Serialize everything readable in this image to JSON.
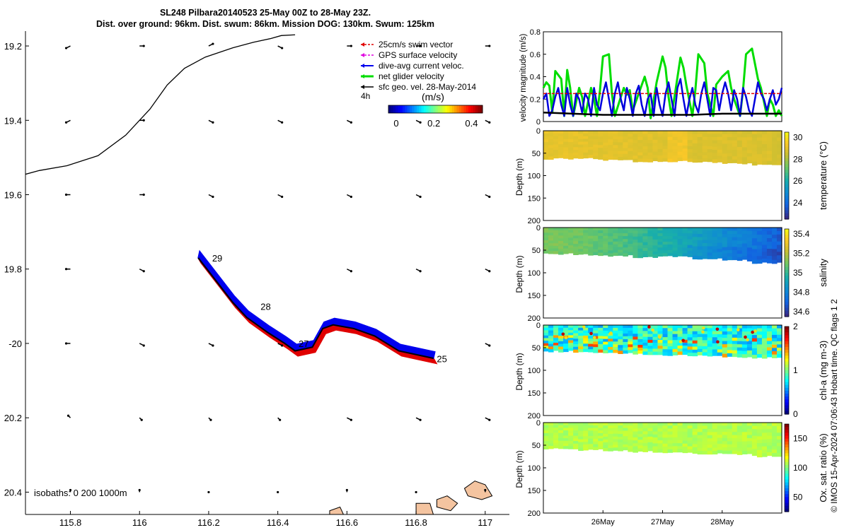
{
  "title": {
    "line1": "SL248 Pilbara20140523 25-May 00Z to 28-May 23Z.",
    "line2": "Dist. over ground: 96km. Dist. swum: 86km. Mission DOG: 130km. Swum: 125km"
  },
  "credit": "© IMOS 15-Apr-2024 07:06:43 Hobart time. QC flags 1  2",
  "colors": {
    "swim": "#e00000",
    "gps": "#e000e0",
    "dive": "#0000ee",
    "net": "#00dd00",
    "sfc": "#000000",
    "coast": "#f4c4a0"
  },
  "chart_data": [
    {
      "type": "map",
      "xlim": [
        115.67,
        117.07
      ],
      "ylim": [
        -20.46,
        -19.16
      ],
      "xticks": [
        115.8,
        116,
        116.2,
        116.4,
        116.6,
        116.8,
        117
      ],
      "xtick_labels": [
        "115.8",
        "116",
        "116.2",
        "116.4",
        "116.6",
        "116.8",
        "117"
      ],
      "yticks": [
        -19.2,
        -19.4,
        -19.6,
        -19.8,
        -20,
        -20.2,
        -20.4
      ],
      "ytick_labels": [
        "19.2",
        "19.4",
        "19.6",
        "19.8",
        "-20",
        "20.2",
        "20.4"
      ],
      "legend": {
        "position": "top-right",
        "entries": [
          "25cm/s swim vector",
          "GPS surface velocity",
          "dive-avg current veloc.",
          "net glider velocity",
          "sfc geo. vel. 28-May-2014"
        ],
        "scale_label": "4h"
      },
      "colorbar": {
        "label": "(m/s)",
        "ticks": [
          "0",
          "0.2",
          "0.4"
        ],
        "range": [
          0,
          0.5
        ]
      },
      "isobaths_label": "isobaths: 0   200  1000m",
      "isobath_line": [
        [
          115.67,
          -19.545
        ],
        [
          115.71,
          -19.535
        ],
        [
          115.79,
          -19.522
        ],
        [
          115.88,
          -19.495
        ],
        [
          115.96,
          -19.44
        ],
        [
          116.03,
          -19.37
        ],
        [
          116.08,
          -19.305
        ],
        [
          116.13,
          -19.26
        ],
        [
          116.19,
          -19.23
        ],
        [
          116.27,
          -19.205
        ],
        [
          116.33,
          -19.19
        ],
        [
          116.38,
          -19.18
        ],
        [
          116.41,
          -19.172
        ],
        [
          116.45,
          -19.17
        ]
      ],
      "track": [
        [
          116.17,
          -19.77
        ],
        [
          116.22,
          -19.83
        ],
        [
          116.27,
          -19.89
        ],
        [
          116.31,
          -19.93
        ],
        [
          116.37,
          -19.97
        ],
        [
          116.42,
          -20.0
        ],
        [
          116.45,
          -20.02
        ],
        [
          116.5,
          -20.01
        ],
        [
          116.53,
          -19.96
        ],
        [
          116.56,
          -19.95
        ],
        [
          116.62,
          -19.96
        ],
        [
          116.68,
          -19.98
        ],
        [
          116.75,
          -20.02
        ],
        [
          116.85,
          -20.04
        ]
      ],
      "day_labels": [
        {
          "text": "29",
          "lon": 116.21,
          "lat": -19.78
        },
        {
          "text": "28",
          "lon": 116.35,
          "lat": -19.91
        },
        {
          "text": "27",
          "lon": 116.46,
          "lat": -20.01
        },
        {
          "text": "25",
          "lon": 116.86,
          "lat": -20.05
        }
      ],
      "geo_vectors": [
        {
          "lon": 115.8,
          "lat": -19.2,
          "u": -0.02,
          "v": -0.01
        },
        {
          "lon": 116,
          "lat": -19.2,
          "u": 0.02,
          "v": 0
        },
        {
          "lon": 116.2,
          "lat": -19.2,
          "u": 0.02,
          "v": 0.01
        },
        {
          "lon": 116.4,
          "lat": -19.2,
          "u": 0.02,
          "v": -0.01
        },
        {
          "lon": 116.6,
          "lat": -19.2,
          "u": 0.02,
          "v": 0
        },
        {
          "lon": 116.8,
          "lat": -19.2,
          "u": 0.02,
          "v": 0
        },
        {
          "lon": 117,
          "lat": -19.2,
          "u": 0.02,
          "v": 0
        },
        {
          "lon": 115.8,
          "lat": -19.4,
          "u": -0.02,
          "v": -0.01
        },
        {
          "lon": 116,
          "lat": -19.4,
          "u": 0.02,
          "v": 0
        },
        {
          "lon": 116.2,
          "lat": -19.4,
          "u": 0.02,
          "v": -0.01
        },
        {
          "lon": 116.4,
          "lat": -19.4,
          "u": 0.02,
          "v": -0.01
        },
        {
          "lon": 116.6,
          "lat": -19.4,
          "u": 0.02,
          "v": -0.01
        },
        {
          "lon": 116.8,
          "lat": -19.4,
          "u": 0.02,
          "v": -0.01
        },
        {
          "lon": 117,
          "lat": -19.4,
          "u": 0.02,
          "v": -0.01
        },
        {
          "lon": 115.8,
          "lat": -19.6,
          "u": -0.02,
          "v": 0
        },
        {
          "lon": 116,
          "lat": -19.6,
          "u": 0.02,
          "v": 0
        },
        {
          "lon": 116.2,
          "lat": -19.6,
          "u": 0.02,
          "v": -0.01
        },
        {
          "lon": 116.4,
          "lat": -19.6,
          "u": 0.02,
          "v": -0.01
        },
        {
          "lon": 116.6,
          "lat": -19.6,
          "u": 0.02,
          "v": -0.01
        },
        {
          "lon": 116.8,
          "lat": -19.6,
          "u": 0.02,
          "v": -0.01
        },
        {
          "lon": 117,
          "lat": -19.6,
          "u": 0.02,
          "v": -0.01
        },
        {
          "lon": 115.8,
          "lat": -19.8,
          "u": -0.02,
          "v": 0
        },
        {
          "lon": 116,
          "lat": -19.8,
          "u": 0.02,
          "v": -0.01
        },
        {
          "lon": 116.6,
          "lat": -19.8,
          "u": 0.02,
          "v": -0.01
        },
        {
          "lon": 116.8,
          "lat": -19.8,
          "u": 0.02,
          "v": -0.01
        },
        {
          "lon": 117,
          "lat": -19.8,
          "u": 0.02,
          "v": -0.01
        },
        {
          "lon": 115.8,
          "lat": -20,
          "u": -0.02,
          "v": 0
        },
        {
          "lon": 116,
          "lat": -20,
          "u": 0.02,
          "v": -0.01
        },
        {
          "lon": 116.2,
          "lat": -20,
          "u": 0.02,
          "v": -0.01
        },
        {
          "lon": 116.4,
          "lat": -20,
          "u": 0.02,
          "v": -0.01
        },
        {
          "lon": 117,
          "lat": -20,
          "u": 0.02,
          "v": -0.01
        },
        {
          "lon": 115.8,
          "lat": -20.2,
          "u": -0.01,
          "v": 0.01
        },
        {
          "lon": 116,
          "lat": -20.2,
          "u": 0.01,
          "v": -0.01
        },
        {
          "lon": 116.2,
          "lat": -20.2,
          "u": 0.01,
          "v": -0.01
        },
        {
          "lon": 116.4,
          "lat": -20.2,
          "u": 0.01,
          "v": -0.01
        },
        {
          "lon": 116.6,
          "lat": -20.2,
          "u": 0.02,
          "v": -0.01
        },
        {
          "lon": 116.8,
          "lat": -20.2,
          "u": 0.02,
          "v": -0.01
        },
        {
          "lon": 117,
          "lat": -20.2,
          "u": 0.02,
          "v": -0.01
        },
        {
          "lon": 115.8,
          "lat": -20.4,
          "u": 0,
          "v": 0.01
        },
        {
          "lon": 116,
          "lat": -20.4,
          "u": 0,
          "v": 0.01
        },
        {
          "lon": 116.2,
          "lat": -20.4,
          "u": 0,
          "v": 0
        },
        {
          "lon": 116.4,
          "lat": -20.4,
          "u": 0,
          "v": 0
        },
        {
          "lon": 116.6,
          "lat": -20.4,
          "u": 0,
          "v": 0.01
        },
        {
          "lon": 116.8,
          "lat": -20.4,
          "u": 0,
          "v": 0
        },
        {
          "lon": 117,
          "lat": -20.4,
          "u": 0,
          "v": 0.01
        }
      ],
      "coast_islands": [
        [
          [
            116.94,
            -20.39
          ],
          [
            116.97,
            -20.37
          ],
          [
            117.0,
            -20.38
          ],
          [
            117.02,
            -20.41
          ],
          [
            116.99,
            -20.42
          ],
          [
            116.95,
            -20.41
          ]
        ],
        [
          [
            116.86,
            -20.42
          ],
          [
            116.89,
            -20.41
          ],
          [
            116.92,
            -20.43
          ],
          [
            116.9,
            -20.45
          ],
          [
            116.86,
            -20.44
          ]
        ],
        [
          [
            116.8,
            -20.43
          ],
          [
            116.84,
            -20.43
          ],
          [
            116.85,
            -20.46
          ],
          [
            116.8,
            -20.46
          ]
        ],
        [
          [
            116.55,
            -20.45
          ],
          [
            116.58,
            -20.44
          ],
          [
            116.59,
            -20.46
          ],
          [
            116.55,
            -20.46
          ]
        ]
      ]
    },
    {
      "type": "line",
      "ylabel": "velocity magnitude (m/s)",
      "xlim": [
        25.0,
        29.0
      ],
      "ylim": [
        0,
        0.8
      ],
      "yticks": [
        0,
        0.2,
        0.4,
        0.6,
        0.8
      ],
      "ytick_labels": [
        "0",
        "0.2",
        "0.4",
        "0.6",
        "0.8"
      ],
      "series": [
        {
          "name": "net glider velocity",
          "color": "#00dd00",
          "width": 3,
          "x": [
            25.0,
            25.05,
            25.1,
            25.15,
            25.2,
            25.3,
            25.35,
            25.4,
            25.45,
            25.5,
            25.6,
            25.65,
            25.7,
            25.8,
            25.85,
            25.9,
            25.95,
            26.0,
            26.1,
            26.15,
            26.2,
            26.3,
            26.35,
            26.4,
            26.45,
            26.5,
            26.6,
            26.7,
            26.75,
            26.8,
            26.9,
            27.0,
            27.05,
            27.1,
            27.15,
            27.2,
            27.3,
            27.35,
            27.4,
            27.5,
            27.55,
            27.6,
            27.7,
            27.75,
            27.8,
            27.85,
            27.9,
            28.0,
            28.1,
            28.15,
            28.2,
            28.3,
            28.35,
            28.4,
            28.5,
            28.6,
            28.65,
            28.7,
            28.75,
            28.8,
            28.85,
            28.9,
            28.95,
            29.0
          ],
          "values": [
            0.3,
            0.35,
            0.32,
            0.08,
            0.45,
            0.38,
            0.05,
            0.46,
            0.3,
            0.05,
            0.3,
            0.22,
            0.05,
            0.3,
            0.2,
            0.05,
            0.28,
            0.58,
            0.6,
            0.25,
            0.05,
            0.22,
            0.3,
            0.24,
            0.28,
            0.1,
            0.25,
            0.4,
            0.3,
            0.03,
            0.35,
            0.58,
            0.48,
            0.22,
            0.05,
            0.22,
            0.57,
            0.48,
            0.32,
            0.05,
            0.28,
            0.6,
            0.52,
            0.25,
            0.15,
            0.05,
            0.33,
            0.4,
            0.45,
            0.3,
            0.2,
            0.05,
            0.28,
            0.6,
            0.65,
            0.38,
            0.3,
            0.18,
            0.05,
            0.2,
            0.15,
            0.05,
            0.1,
            0.05
          ]
        },
        {
          "name": "dive-avg current veloc.",
          "color": "#0000dd",
          "width": 2.5,
          "x": [
            25.0,
            25.05,
            25.1,
            25.15,
            25.2,
            25.25,
            25.3,
            25.35,
            25.4,
            25.45,
            25.5,
            25.55,
            25.6,
            25.65,
            25.7,
            25.75,
            25.8,
            25.85,
            25.9,
            25.95,
            26.0,
            26.05,
            26.1,
            26.15,
            26.2,
            26.25,
            26.3,
            26.35,
            26.4,
            26.45,
            26.5,
            26.55,
            26.6,
            26.65,
            26.7,
            26.75,
            26.8,
            26.85,
            26.9,
            26.95,
            27.0,
            27.05,
            27.1,
            27.15,
            27.2,
            27.25,
            27.3,
            27.35,
            27.4,
            27.45,
            27.5,
            27.55,
            27.6,
            27.65,
            27.7,
            27.75,
            27.8,
            27.85,
            27.9,
            27.95,
            28.0,
            28.05,
            28.1,
            28.15,
            28.2,
            28.25,
            28.3,
            28.35,
            28.4,
            28.45,
            28.5,
            28.55,
            28.6,
            28.65,
            28.7,
            28.75,
            28.8,
            28.85,
            28.9,
            28.95,
            29.0
          ],
          "values": [
            0.2,
            0.25,
            0.05,
            0.1,
            0.22,
            0.3,
            0.15,
            0.05,
            0.3,
            0.15,
            0.05,
            0.25,
            0.2,
            0.08,
            0.25,
            0.2,
            0.05,
            0.3,
            0.15,
            0.1,
            0.25,
            0.35,
            0.2,
            0.05,
            0.25,
            0.35,
            0.2,
            0.1,
            0.3,
            0.2,
            0.05,
            0.25,
            0.32,
            0.15,
            0.05,
            0.2,
            0.25,
            0.05,
            0.3,
            0.15,
            0.05,
            0.25,
            0.35,
            0.2,
            0.05,
            0.3,
            0.38,
            0.2,
            0.05,
            0.2,
            0.3,
            0.15,
            0.08,
            0.25,
            0.35,
            0.2,
            0.05,
            0.3,
            0.28,
            0.1,
            0.25,
            0.35,
            0.25,
            0.1,
            0.28,
            0.2,
            0.05,
            0.3,
            0.22,
            0.1,
            0.05,
            0.2,
            0.35,
            0.25,
            0.2,
            0.1,
            0.2,
            0.28,
            0.15,
            0.2,
            0.3
          ]
        },
        {
          "name": "swim vector",
          "color": "#e00000",
          "width": 1.5,
          "dashed": true,
          "x": [
            25.0,
            29.0
          ],
          "values": [
            0.25,
            0.25
          ]
        },
        {
          "name": "sfc geo. vel.",
          "color": "#000000",
          "width": 2.5,
          "x": [
            25.0,
            25.5,
            26.0,
            26.5,
            27.0,
            27.5,
            28.0,
            28.5,
            29.0
          ],
          "values": [
            0.08,
            0.07,
            0.06,
            0.06,
            0.06,
            0.06,
            0.07,
            0.07,
            0.07
          ]
        }
      ]
    },
    {
      "type": "heatmap",
      "name": "temperature",
      "ylabel": "Depth (m)",
      "yticks": [
        0,
        50,
        100,
        150,
        200
      ],
      "ytick_labels": [
        "0",
        "50",
        "100",
        "150",
        "200"
      ],
      "colorbar_label": "temperature (°C)",
      "colorbar_ticks": [
        "30",
        "28",
        "26",
        "24"
      ],
      "crange": [
        22.5,
        30.5
      ],
      "bottom_depth": [
        62,
        62,
        64,
        68,
        68,
        70,
        72,
        76
      ]
    },
    {
      "type": "heatmap",
      "name": "salinity",
      "ylabel": "Depth (m)",
      "yticks": [
        0,
        50,
        100,
        150,
        200
      ],
      "ytick_labels": [
        "0",
        "50",
        "100",
        "150",
        "200"
      ],
      "colorbar_label": "salinity",
      "colorbar_ticks": [
        "35.4",
        "35.2",
        "35",
        "34.8",
        "34.6"
      ],
      "crange": [
        34.55,
        35.45
      ],
      "bottom_depth": [
        58,
        60,
        62,
        65,
        64,
        68,
        72,
        78
      ]
    },
    {
      "type": "heatmap",
      "name": "chl-a",
      "ylabel": "Depth (m)",
      "yticks": [
        0,
        50,
        100,
        150,
        200
      ],
      "ytick_labels": [
        "0",
        "50",
        "100",
        "150",
        "200"
      ],
      "colorbar_label": "chl-a (mg m-3)",
      "colorbar_ticks": [
        "2",
        "1",
        "0"
      ],
      "crange": [
        0,
        2
      ],
      "bottom_depth": [
        58,
        60,
        62,
        64,
        66,
        68,
        70,
        72
      ]
    },
    {
      "type": "heatmap",
      "name": "oxygen",
      "ylabel": "Depth (m)",
      "yticks": [
        0,
        50,
        100,
        150,
        200
      ],
      "ytick_labels": [
        "0",
        "50",
        "100",
        "150",
        "200"
      ],
      "colorbar_label": "Ox. sat. ratio (%)",
      "colorbar_ticks": [
        "150",
        "100",
        "50"
      ],
      "crange": [
        25,
        175
      ],
      "bottom_depth": [
        58,
        60,
        62,
        64,
        66,
        68,
        70,
        74
      ],
      "xticks": [
        26,
        27,
        28
      ],
      "xtick_labels": [
        "26May",
        "27May",
        "28May"
      ]
    }
  ]
}
